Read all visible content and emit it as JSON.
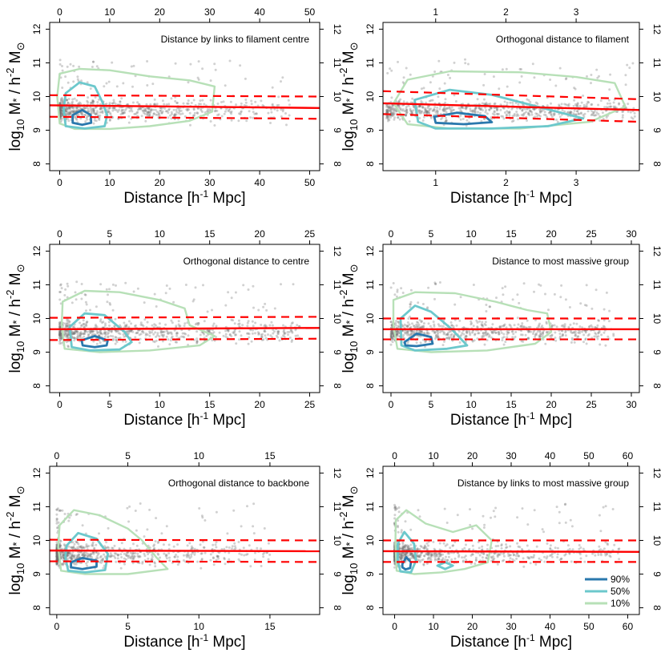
{
  "chart_data": [
    {
      "type": "scatter",
      "title": "Distance by links to filament centre",
      "xlabel": "Distance [h⁻¹ Mpc]",
      "ylabel": "log10 M* / h^-2 M⊙",
      "xlim": [
        -2,
        52
      ],
      "ylim": [
        7.8,
        12.2
      ],
      "xticks": [
        0,
        10,
        20,
        30,
        40,
        50
      ],
      "yticks": [
        8,
        9,
        10,
        11,
        12
      ],
      "scatter": {
        "xmin": 0,
        "xmax": 46,
        "n": 750,
        "spread": 0.26,
        "skew": 2.2
      },
      "fit": {
        "x": [
          -2,
          52
        ],
        "y_mean": [
          9.74,
          9.66
        ],
        "y_upper": [
          10.04,
          10.0
        ],
        "y_lower": [
          9.4,
          9.34
        ]
      },
      "contours": [
        {
          "level": "10%",
          "points": [
            [
              0,
              10.68
            ],
            [
              4,
              10.82
            ],
            [
              10,
              10.78
            ],
            [
              18,
              10.6
            ],
            [
              26,
              10.48
            ],
            [
              31,
              10.3
            ],
            [
              30.5,
              9.55
            ],
            [
              26,
              9.28
            ],
            [
              18,
              9.12
            ],
            [
              10,
              9.04
            ],
            [
              3,
              9.04
            ],
            [
              0,
              9.2
            ],
            [
              -0.5,
              10.0
            ]
          ]
        },
        {
          "level": "50%",
          "points": [
            [
              1.2,
              10.1
            ],
            [
              4,
              10.42
            ],
            [
              7,
              10.3
            ],
            [
              8.5,
              9.85
            ],
            [
              9.5,
              9.45
            ],
            [
              9,
              9.12
            ],
            [
              5,
              9.05
            ],
            [
              1.2,
              9.12
            ],
            [
              0.8,
              9.6
            ]
          ]
        },
        {
          "level": "90%",
          "points": [
            [
              2.6,
              9.45
            ],
            [
              4.5,
              9.6
            ],
            [
              6.2,
              9.45
            ],
            [
              6.3,
              9.22
            ],
            [
              4.5,
              9.16
            ],
            [
              2.6,
              9.22
            ]
          ]
        }
      ]
    },
    {
      "type": "scatter",
      "title": "Orthogonal distance to filament",
      "xlabel": "Distance [h⁻¹ Mpc]",
      "ylabel": "log10 M* / h^-2 M⊙",
      "xlim": [
        0.25,
        3.9
      ],
      "ylim": [
        7.8,
        12.2
      ],
      "xticks": [
        1,
        2,
        3
      ],
      "yticks": [
        8,
        9,
        10,
        11,
        12
      ],
      "scatter": {
        "xmin": 0.3,
        "xmax": 3.85,
        "n": 750,
        "spread": 0.24,
        "skew": 1.4
      },
      "fit": {
        "x": [
          0.25,
          3.9
        ],
        "y_mean": [
          9.8,
          9.6
        ],
        "y_upper": [
          10.16,
          9.92
        ],
        "y_lower": [
          9.48,
          9.25
        ]
      },
      "contours": [
        {
          "level": "10%",
          "points": [
            [
              0.6,
              10.5
            ],
            [
              1.2,
              10.75
            ],
            [
              2.2,
              10.72
            ],
            [
              3.0,
              10.58
            ],
            [
              3.55,
              10.4
            ],
            [
              3.7,
              9.7
            ],
            [
              3.2,
              9.25
            ],
            [
              2.2,
              9.05
            ],
            [
              1.2,
              9.05
            ],
            [
              0.6,
              9.18
            ],
            [
              0.4,
              9.8
            ]
          ]
        },
        {
          "level": "50%",
          "points": [
            [
              0.7,
              9.9
            ],
            [
              1.2,
              10.2
            ],
            [
              1.8,
              10.05
            ],
            [
              2.6,
              9.62
            ],
            [
              3.1,
              9.35
            ],
            [
              2.6,
              9.12
            ],
            [
              1.8,
              9.05
            ],
            [
              1.0,
              9.05
            ],
            [
              0.75,
              9.25
            ]
          ]
        },
        {
          "level": "90%",
          "points": [
            [
              0.98,
              9.4
            ],
            [
              1.3,
              9.52
            ],
            [
              1.7,
              9.42
            ],
            [
              1.8,
              9.24
            ],
            [
              1.4,
              9.18
            ],
            [
              1.0,
              9.22
            ]
          ]
        }
      ]
    },
    {
      "type": "scatter",
      "title": "Orthogonal distance to centre",
      "xlabel": "Distance [h⁻¹ Mpc]",
      "ylabel": "log10 M* / h^-2 M⊙",
      "xlim": [
        -1,
        26
      ],
      "ylim": [
        7.8,
        12.2
      ],
      "xticks": [
        0,
        5,
        10,
        15,
        20,
        25
      ],
      "yticks": [
        8,
        9,
        10,
        11,
        12
      ],
      "scatter": {
        "xmin": 0,
        "xmax": 24,
        "n": 750,
        "spread": 0.26,
        "skew": 2.0
      },
      "fit": {
        "x": [
          -1,
          26
        ],
        "y_mean": [
          9.68,
          9.72
        ],
        "y_upper": [
          10.02,
          10.05
        ],
        "y_lower": [
          9.36,
          9.4
        ]
      },
      "contours": [
        {
          "level": "10%",
          "points": [
            [
              0.3,
              10.5
            ],
            [
              2.5,
              10.82
            ],
            [
              6,
              10.78
            ],
            [
              10,
              10.55
            ],
            [
              12.5,
              10.3
            ],
            [
              13,
              9.8
            ],
            [
              15.5,
              9.48
            ],
            [
              14,
              9.2
            ],
            [
              9,
              9.05
            ],
            [
              4,
              9.0
            ],
            [
              0.5,
              9.1
            ],
            [
              0.2,
              9.8
            ]
          ]
        },
        {
          "level": "50%",
          "points": [
            [
              1.0,
              9.75
            ],
            [
              2.5,
              10.15
            ],
            [
              4.5,
              10.1
            ],
            [
              6.5,
              9.6
            ],
            [
              7.2,
              9.3
            ],
            [
              6.0,
              9.08
            ],
            [
              3.0,
              9.05
            ],
            [
              1.2,
              9.15
            ]
          ]
        },
        {
          "level": "90%",
          "points": [
            [
              2.2,
              9.35
            ],
            [
              3.5,
              9.48
            ],
            [
              4.8,
              9.35
            ],
            [
              4.7,
              9.2
            ],
            [
              3.5,
              9.15
            ],
            [
              2.3,
              9.2
            ]
          ]
        }
      ]
    },
    {
      "type": "scatter",
      "title": "Distance to most massive group",
      "xlabel": "Distance [h⁻¹ Mpc]",
      "ylabel": "log10 M* / h^-2 M⊙",
      "xlim": [
        -1,
        31
      ],
      "ylim": [
        7.8,
        12.2
      ],
      "xticks": [
        0,
        5,
        10,
        15,
        20,
        25,
        30
      ],
      "yticks": [
        8,
        9,
        10,
        11,
        12
      ],
      "scatter": {
        "xmin": 0,
        "xmax": 28,
        "n": 750,
        "spread": 0.26,
        "skew": 1.8
      },
      "fit": {
        "x": [
          -1,
          31
        ],
        "y_mean": [
          9.68,
          9.68
        ],
        "y_upper": [
          10.0,
          10.0
        ],
        "y_lower": [
          9.38,
          9.38
        ]
      },
      "contours": [
        {
          "level": "10%",
          "points": [
            [
              0.3,
              10.55
            ],
            [
              3,
              10.78
            ],
            [
              8,
              10.75
            ],
            [
              13,
              10.5
            ],
            [
              17,
              10.25
            ],
            [
              19.5,
              10.15
            ],
            [
              20,
              9.6
            ],
            [
              18,
              9.25
            ],
            [
              12,
              9.05
            ],
            [
              5,
              9.0
            ],
            [
              0.8,
              9.1
            ],
            [
              0.3,
              9.8
            ]
          ]
        },
        {
          "level": "50%",
          "points": [
            [
              1.2,
              10.0
            ],
            [
              3,
              10.38
            ],
            [
              5,
              10.2
            ],
            [
              7.5,
              9.7
            ],
            [
              9.5,
              9.2
            ],
            [
              7,
              9.1
            ],
            [
              3,
              9.05
            ],
            [
              1.3,
              9.2
            ]
          ]
        },
        {
          "level": "90%",
          "points": [
            [
              1.7,
              9.3
            ],
            [
              3.2,
              9.55
            ],
            [
              5.0,
              9.45
            ],
            [
              5.2,
              9.25
            ],
            [
              3.2,
              9.18
            ],
            [
              1.8,
              9.2
            ]
          ]
        }
      ]
    },
    {
      "type": "scatter",
      "title": "Orthogonal distance to backbone",
      "xlabel": "Distance [h⁻¹ Mpc]",
      "ylabel": "log10 M* / h^-2 M⊙",
      "xlim": [
        -0.5,
        18.5
      ],
      "ylim": [
        7.8,
        12.2
      ],
      "xticks": [
        0,
        5,
        10,
        15
      ],
      "yticks": [
        8,
        9,
        10,
        11,
        12
      ],
      "scatter": {
        "xmin": 0,
        "xmax": 15,
        "n": 750,
        "spread": 0.27,
        "skew": 3.0
      },
      "fit": {
        "x": [
          -0.5,
          18.5
        ],
        "y_mean": [
          9.7,
          9.68
        ],
        "y_upper": [
          10.02,
          10.0
        ],
        "y_lower": [
          9.38,
          9.36
        ]
      },
      "contours": [
        {
          "level": "10%",
          "points": [
            [
              0.2,
              10.45
            ],
            [
              1.2,
              10.9
            ],
            [
              3,
              10.75
            ],
            [
              5,
              10.35
            ],
            [
              6,
              10.0
            ],
            [
              7,
              9.5
            ],
            [
              7.8,
              9.15
            ],
            [
              5,
              9.0
            ],
            [
              2,
              9.0
            ],
            [
              0.3,
              9.1
            ],
            [
              0.1,
              9.8
            ]
          ]
        },
        {
          "level": "50%",
          "points": [
            [
              0.7,
              9.85
            ],
            [
              1.5,
              10.22
            ],
            [
              2.8,
              10.05
            ],
            [
              3.6,
              9.6
            ],
            [
              3.4,
              9.12
            ],
            [
              2.0,
              9.05
            ],
            [
              0.8,
              9.1
            ],
            [
              0.6,
              9.5
            ]
          ]
        },
        {
          "level": "90%",
          "points": [
            [
              1.0,
              9.35
            ],
            [
              1.8,
              9.48
            ],
            [
              2.8,
              9.4
            ],
            [
              2.8,
              9.22
            ],
            [
              1.8,
              9.15
            ],
            [
              1.0,
              9.2
            ]
          ]
        }
      ]
    },
    {
      "type": "scatter",
      "title": "Distance by links to most massive group",
      "xlabel": "Distance [h⁻¹ Mpc]",
      "ylabel": "log10 M* / h^-2 M⊙",
      "xlim": [
        -3,
        63
      ],
      "ylim": [
        7.8,
        12.2
      ],
      "xticks": [
        0,
        10,
        20,
        30,
        40,
        50,
        60
      ],
      "yticks": [
        8,
        9,
        10,
        11,
        12
      ],
      "scatter": {
        "xmin": 0,
        "xmax": 58,
        "n": 750,
        "spread": 0.26,
        "skew": 3.0
      },
      "fit": {
        "x": [
          -3,
          63
        ],
        "y_mean": [
          9.68,
          9.66
        ],
        "y_upper": [
          10.0,
          10.0
        ],
        "y_lower": [
          9.36,
          9.36
        ]
      },
      "contours": [
        {
          "level": "10%",
          "points": [
            [
              0.3,
              10.6
            ],
            [
              3,
              10.9
            ],
            [
              8,
              10.5
            ],
            [
              15,
              10.25
            ],
            [
              21,
              10.45
            ],
            [
              25,
              10.0
            ],
            [
              24,
              9.35
            ],
            [
              18,
              9.15
            ],
            [
              12,
              9.05
            ],
            [
              5,
              9.0
            ],
            [
              0.5,
              9.1
            ],
            [
              0.2,
              9.9
            ]
          ]
        },
        {
          "level": "50%",
          "points": [
            [
              0.8,
              9.9
            ],
            [
              2.5,
              10.25
            ],
            [
              5,
              9.9
            ],
            [
              5.5,
              9.4
            ],
            [
              4.2,
              9.05
            ],
            [
              1.5,
              9.08
            ],
            [
              0.8,
              9.4
            ]
          ]
        },
        {
          "level": "50%",
          "points": [
            [
              11,
              9.25
            ],
            [
              13,
              9.35
            ],
            [
              15,
              9.25
            ],
            [
              13,
              9.15
            ]
          ]
        },
        {
          "level": "90%",
          "points": [
            [
              2.0,
              9.3
            ],
            [
              3.0,
              9.5
            ],
            [
              4.2,
              9.35
            ],
            [
              4.0,
              9.18
            ],
            [
              2.8,
              9.14
            ],
            [
              2.0,
              9.2
            ]
          ]
        }
      ],
      "legend": {
        "position": "bottom-right"
      }
    }
  ],
  "legend": {
    "items": [
      {
        "label": "90%",
        "color": "#2a78ad"
      },
      {
        "label": "50%",
        "color": "#6cc8cc"
      },
      {
        "label": "10%",
        "color": "#b7e0b7"
      }
    ]
  },
  "colors": {
    "fit_line": "#ff0000",
    "points": "#707070",
    "c90": "#2a78ad",
    "c50": "#6cc8cc",
    "c10": "#b7e0b7"
  }
}
